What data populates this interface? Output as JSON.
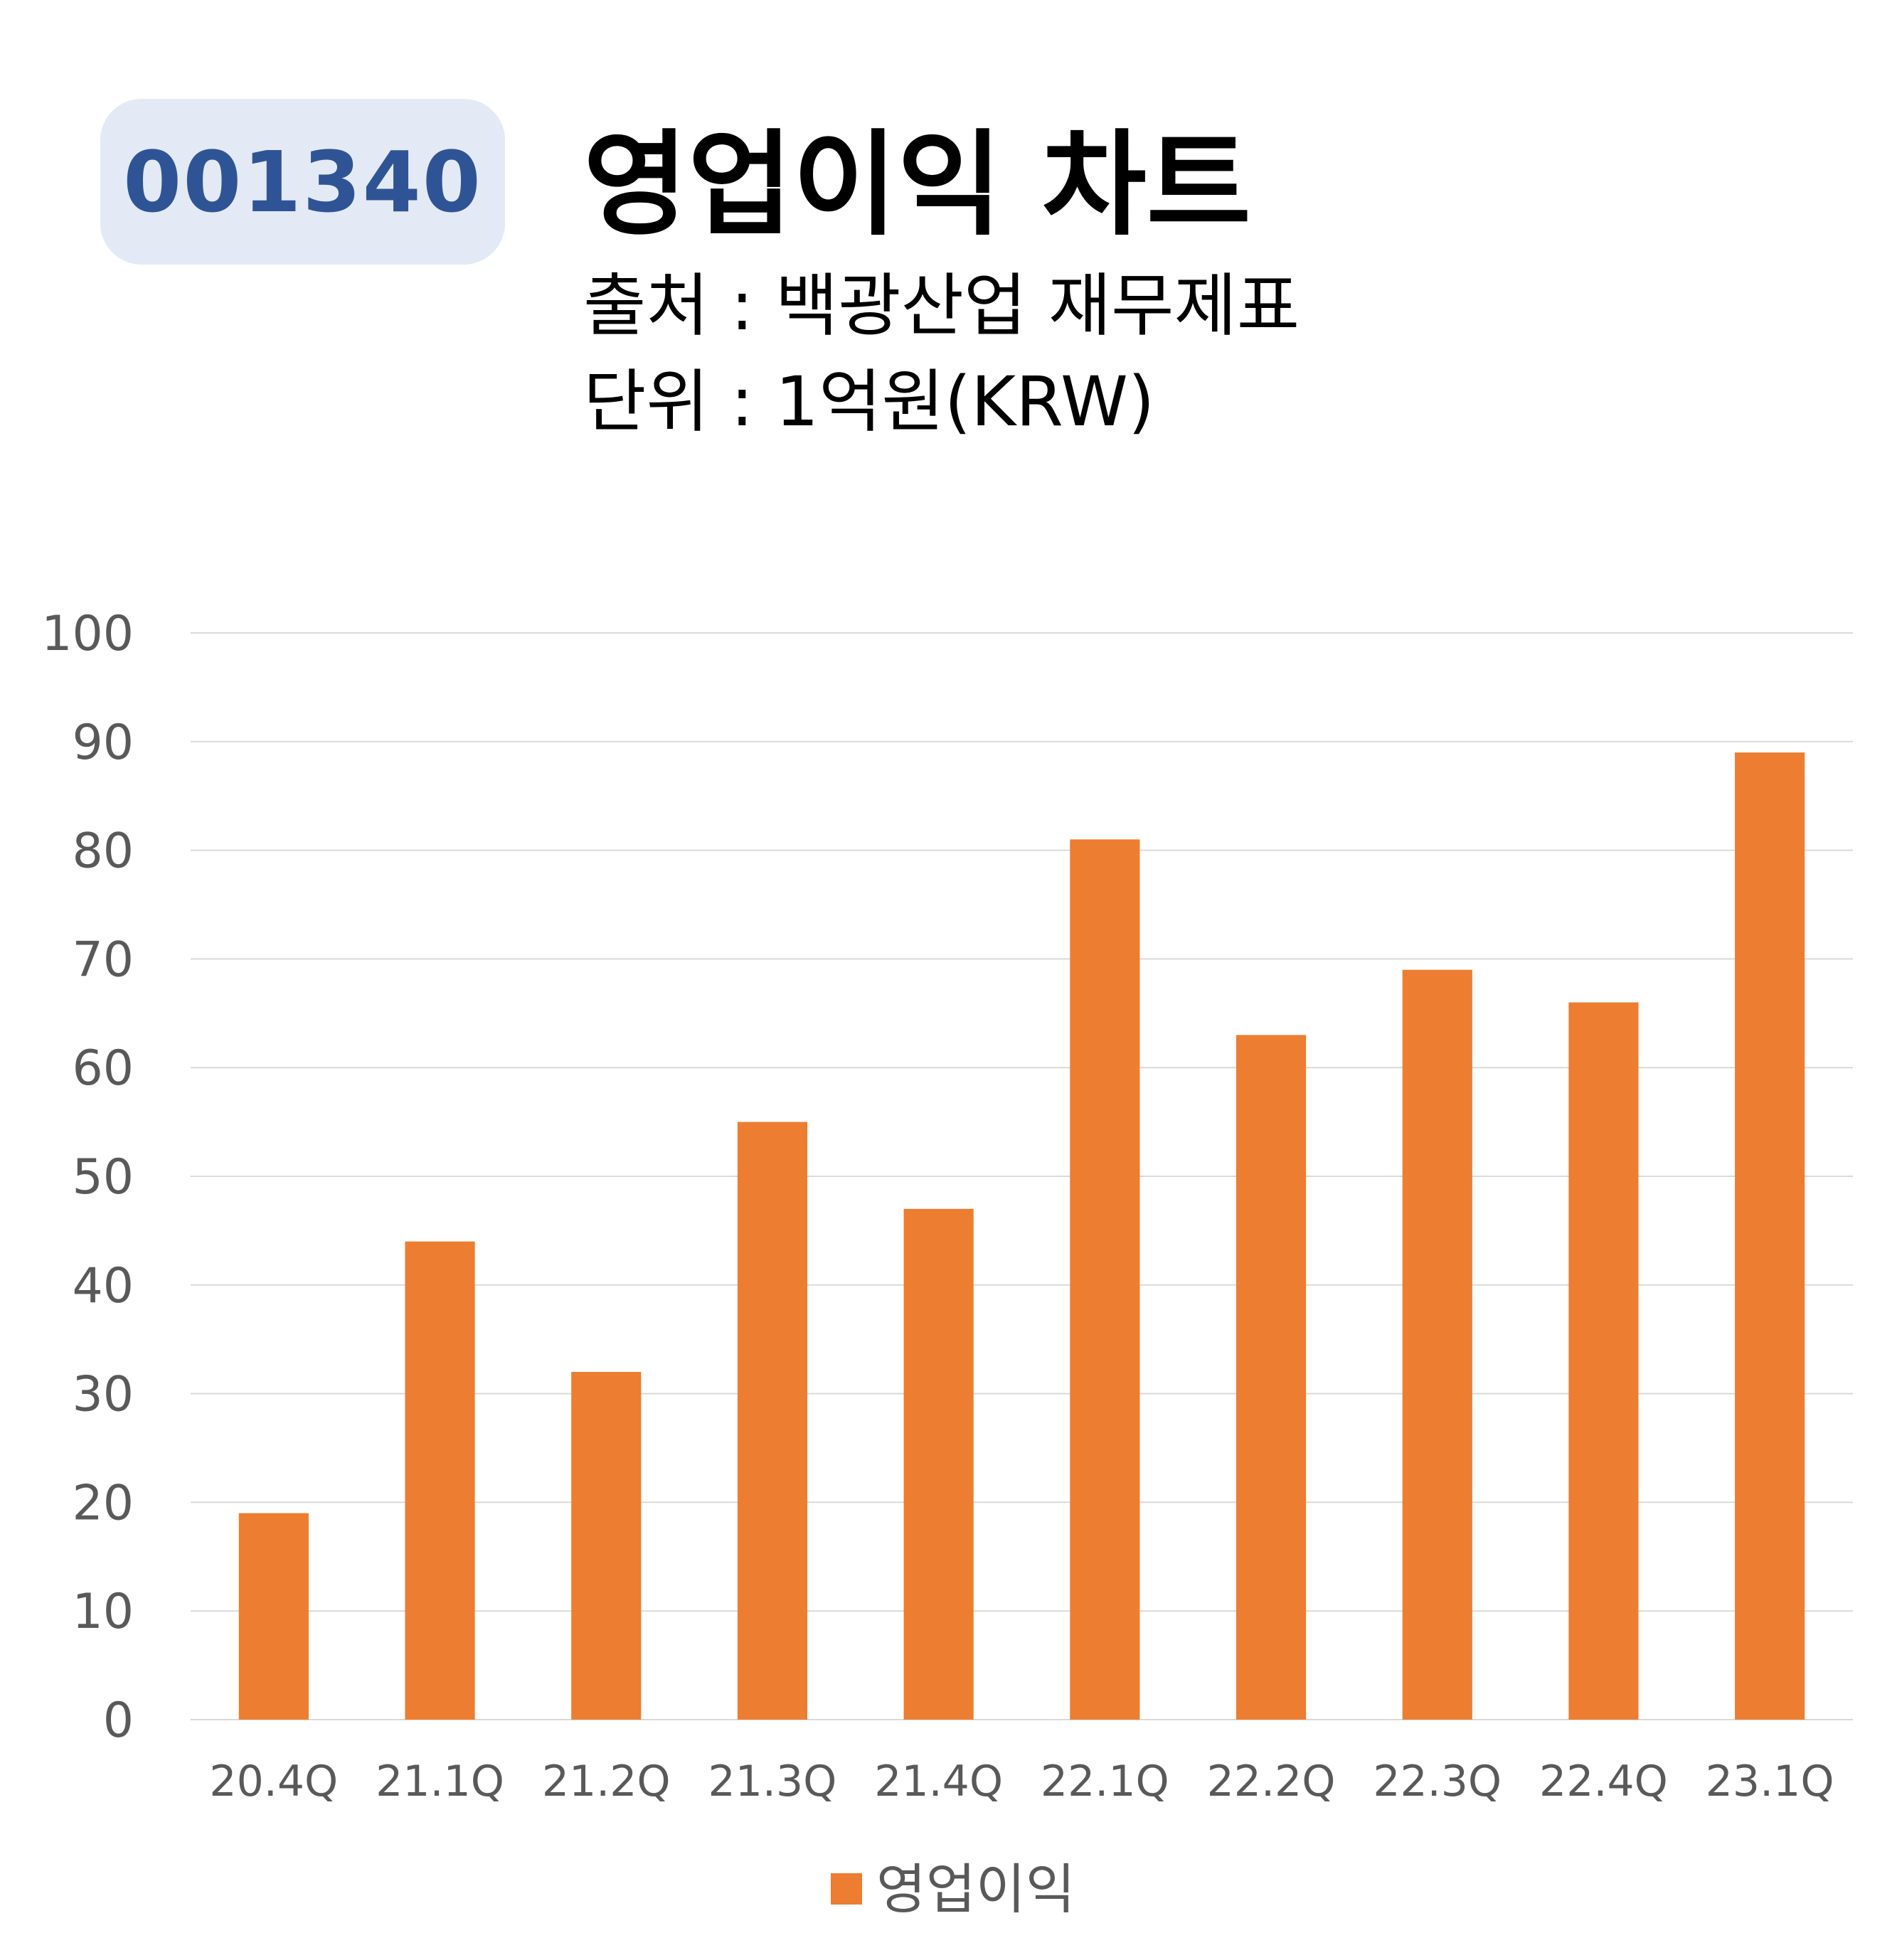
{
  "badge": {
    "code": "001340"
  },
  "header": {
    "title": "영업이익 차트",
    "source": "출처 : 백광산업 재무제표",
    "unit": "단위 : 1억원(KRW)"
  },
  "colors": {
    "bar": "#ed7d31",
    "badge_bg": "#e3e9f5",
    "badge_text": "#2f5496",
    "grid": "#d9d9d9",
    "axis_text": "#595959"
  },
  "chart_data": {
    "type": "bar",
    "categories": [
      "20.4Q",
      "21.1Q",
      "21.2Q",
      "21.3Q",
      "21.4Q",
      "22.1Q",
      "22.2Q",
      "22.3Q",
      "22.4Q",
      "23.1Q"
    ],
    "series": [
      {
        "name": "영업이익",
        "values": [
          19,
          44,
          32,
          55,
          47,
          81,
          63,
          69,
          66,
          89
        ]
      }
    ],
    "ylim": [
      0,
      100
    ],
    "yticks": [
      0,
      10,
      20,
      30,
      40,
      50,
      60,
      70,
      80,
      90,
      100
    ],
    "grid": true,
    "legend": "bottom"
  }
}
